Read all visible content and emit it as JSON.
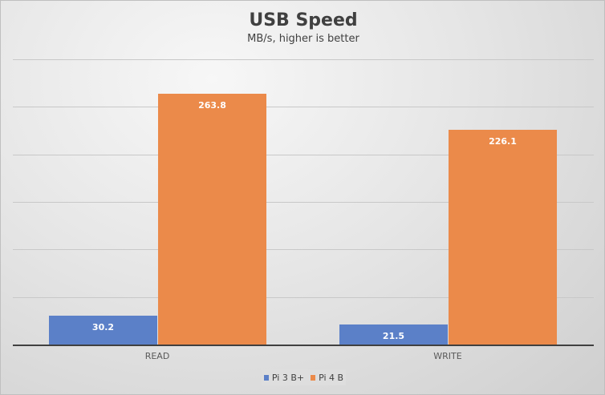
{
  "chart_data": {
    "type": "bar",
    "title": "USB Speed",
    "subtitle": "MB/s, higher is better",
    "categories": [
      "READ",
      "WRITE"
    ],
    "series": [
      {
        "name": "Pi 3 B+",
        "color": "#5b80c8",
        "values": [
          30.2,
          21.5
        ]
      },
      {
        "name": "Pi 4 B",
        "color": "#eb8a4a",
        "values": [
          263.8,
          226.1
        ]
      }
    ],
    "xlabel": "",
    "ylabel": "",
    "ylim": [
      0,
      300
    ],
    "gridlines": [
      0,
      50,
      100,
      150,
      200,
      250,
      300
    ],
    "grid": true,
    "y_tick_labels_shown": false,
    "legend_position": "bottom",
    "data_labels": [
      "30.2",
      "263.8",
      "21.5",
      "226.1"
    ]
  }
}
